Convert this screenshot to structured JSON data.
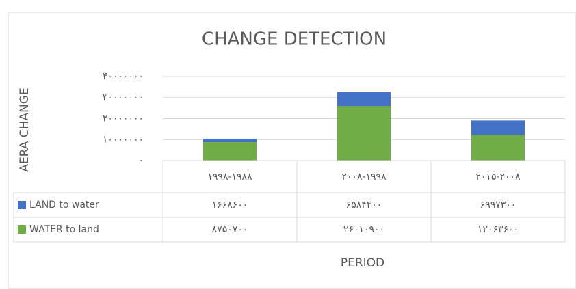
{
  "chart_data": {
    "type": "stacked-bar-with-table",
    "title": "CHANGE DETECTION",
    "y_label": "AERA CHANGE",
    "x_label": "PERIOD",
    "categories": [
      "۱۹۹۸-۱۹۸۸",
      "۲۰۰۸-۱۹۹۸",
      "۲۰۱۵-۲۰۰۸"
    ],
    "series": [
      {
        "name": "LAND to water",
        "color": "#4472c4",
        "values": [
          1668600,
          6584400,
          6997300
        ],
        "value_labels": [
          "۱۶۶۸۶۰۰",
          "۶۵۸۴۴۰۰",
          "۶۹۹۷۳۰۰"
        ]
      },
      {
        "name": "WATER to land",
        "color": "#70ad47",
        "values": [
          8750700,
          26010900,
          12063600
        ],
        "value_labels": [
          "۸۷۵۰۷۰۰",
          "۲۶۰۱۰۹۰۰",
          "۱۲۰۶۳۶۰۰"
        ]
      }
    ],
    "ylim": [
      0,
      40000000
    ],
    "yticks": [
      {
        "value": 0,
        "label": "۰"
      },
      {
        "value": 10000000,
        "label": "۱۰۰۰۰۰۰۰"
      },
      {
        "value": 20000000,
        "label": "۲۰۰۰۰۰۰۰"
      },
      {
        "value": 30000000,
        "label": "۳۰۰۰۰۰۰۰"
      },
      {
        "value": 40000000,
        "label": "۴۰۰۰۰۰۰۰"
      }
    ],
    "grid": true
  }
}
